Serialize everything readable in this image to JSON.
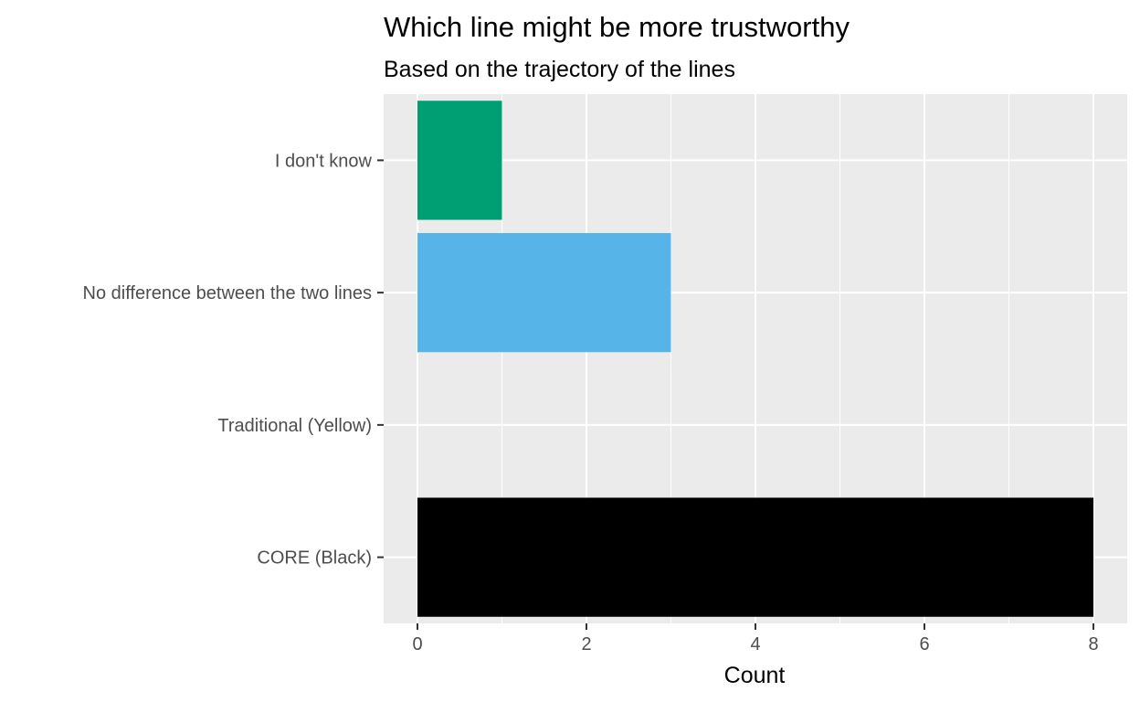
{
  "chart_data": {
    "type": "bar",
    "orientation": "horizontal",
    "title": "Which line might be more trustworthy",
    "subtitle": "Based on the trajectory of the lines",
    "xlabel": "Count",
    "ylabel": "",
    "categories": [
      "CORE (Black)",
      "Traditional (Yellow)",
      "No difference between the two lines",
      "I don't know"
    ],
    "values": [
      8,
      0,
      3,
      1
    ],
    "colors": [
      "#000000",
      "#E69F00",
      "#56B4E9",
      "#009E73"
    ],
    "xlim": [
      -0.4,
      8.4
    ],
    "x_ticks": [
      0,
      2,
      4,
      6,
      8
    ],
    "x_minor_ticks": [
      1,
      3,
      5,
      7
    ],
    "grid": true,
    "panel_background": "#EBEBEB",
    "grid_color": "#FFFFFF",
    "legend": "none"
  }
}
